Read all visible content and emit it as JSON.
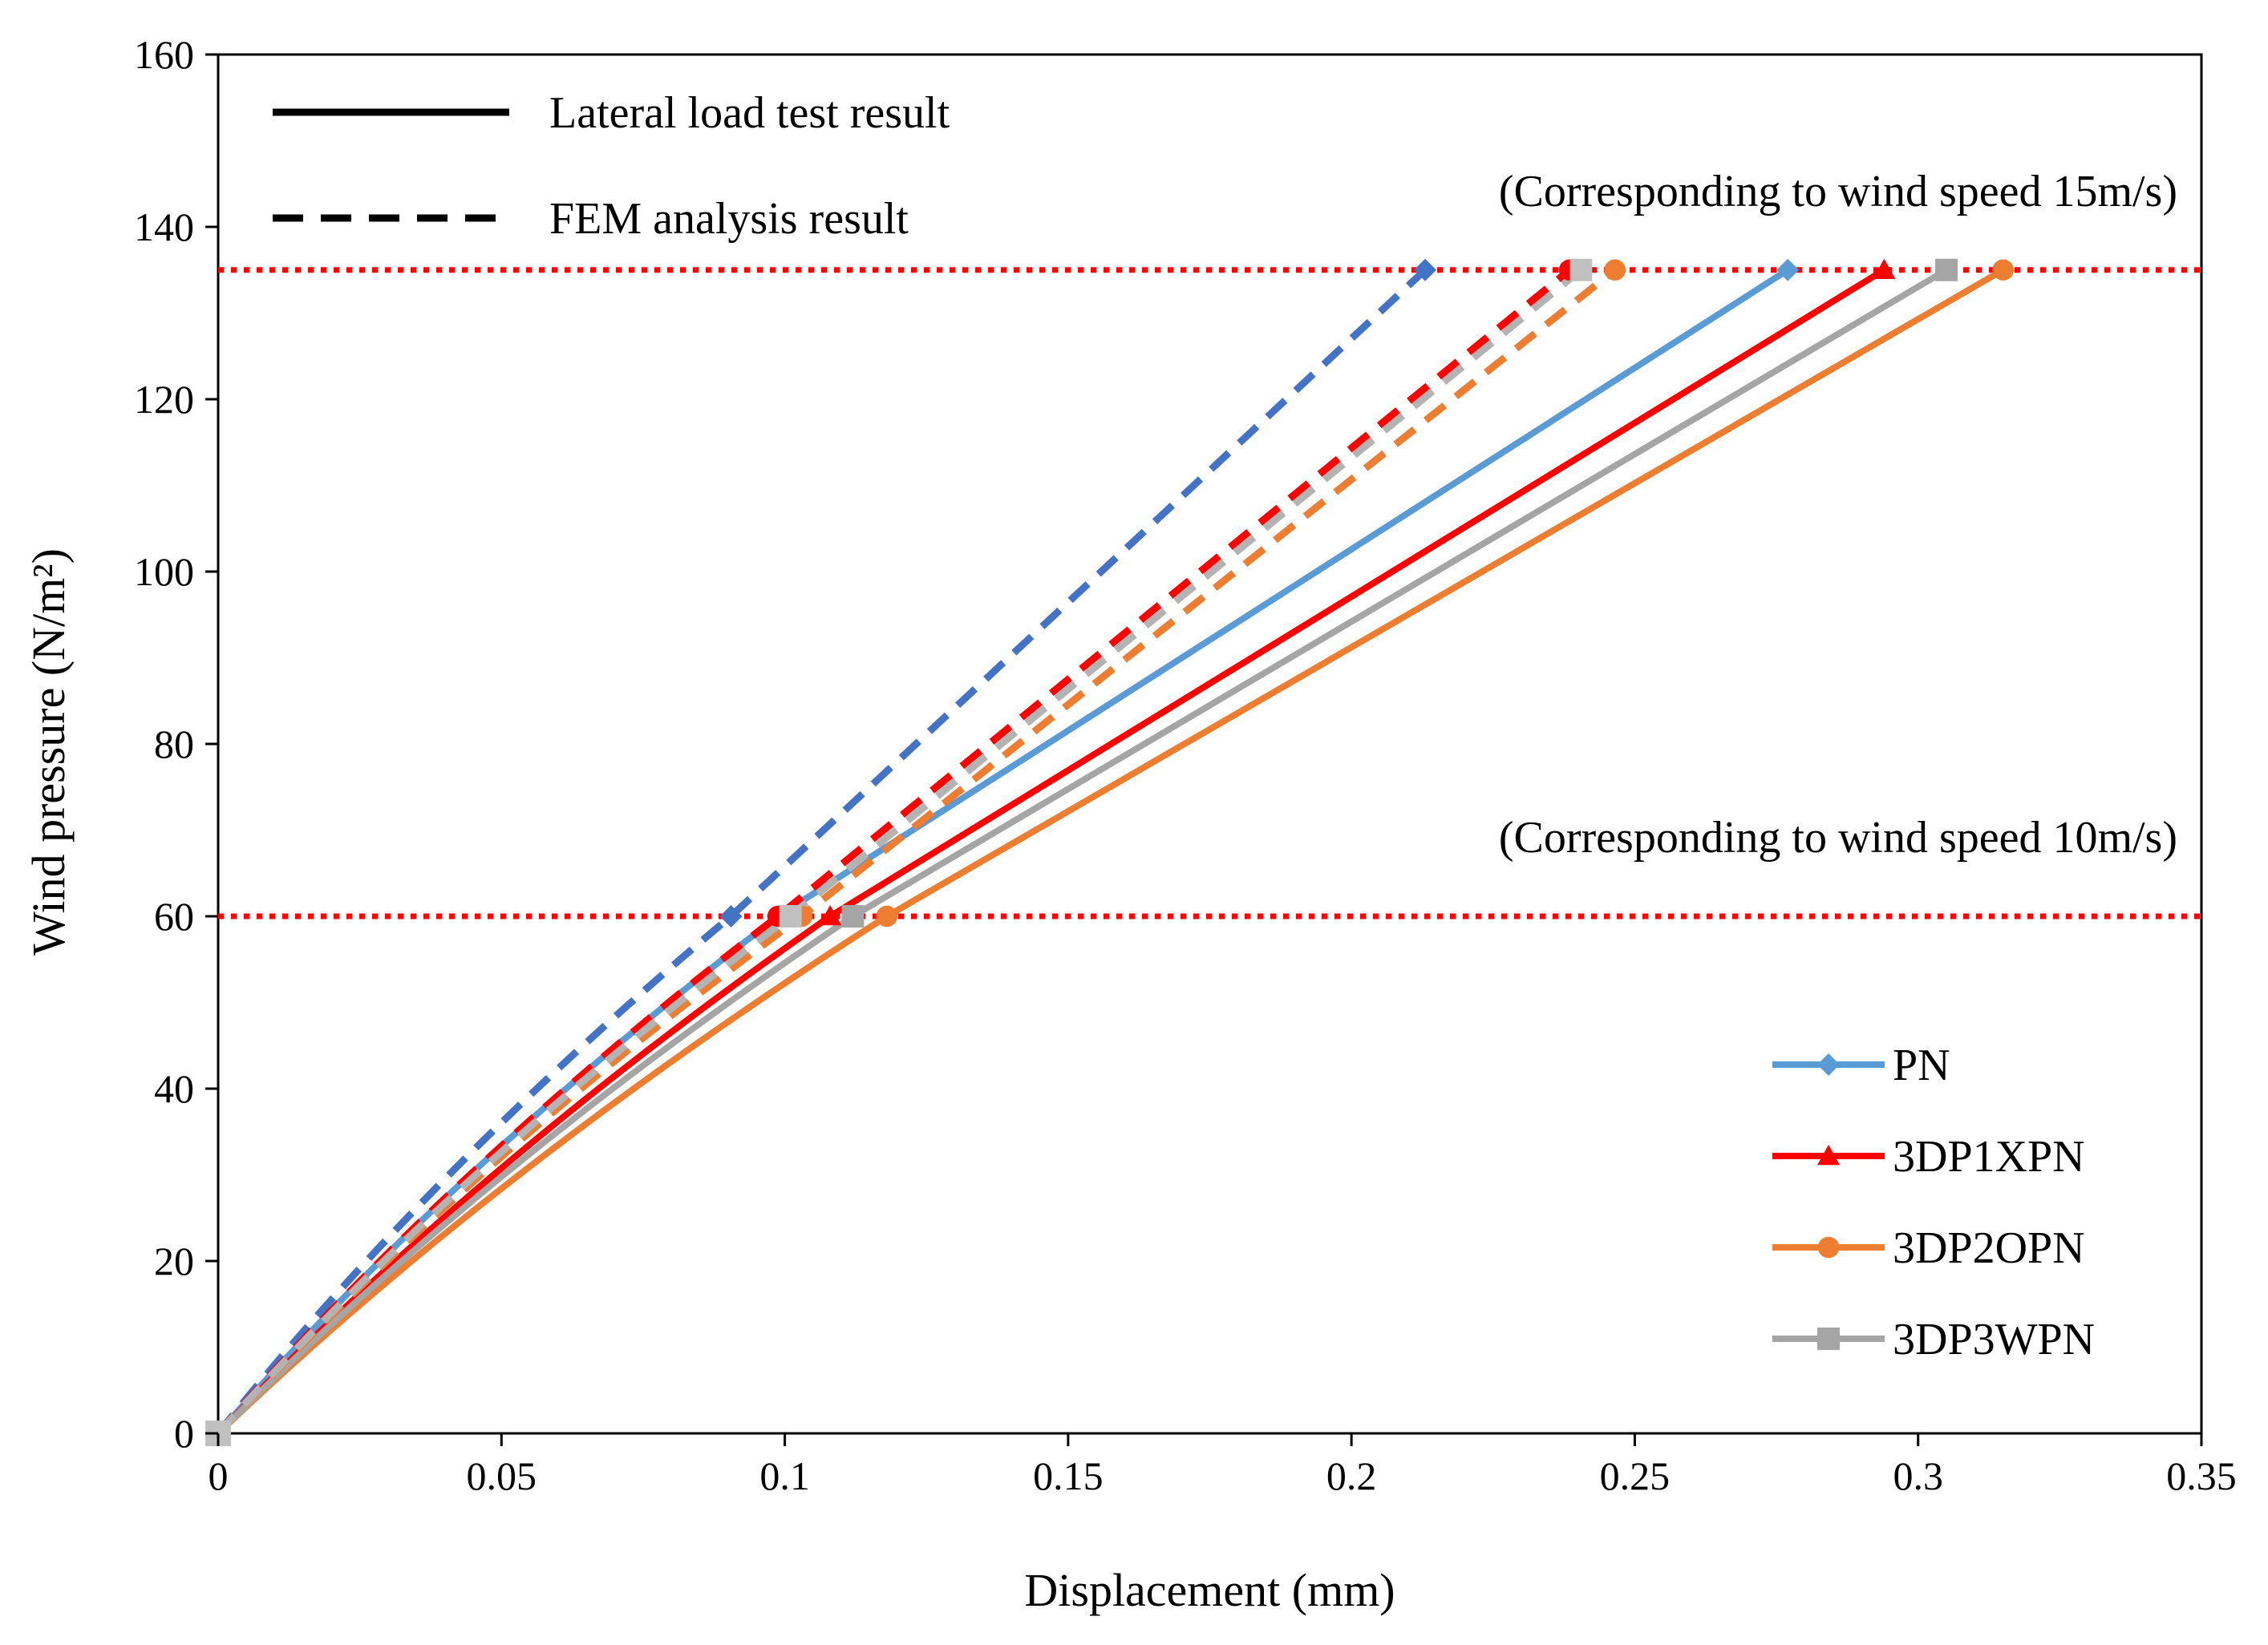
{
  "chart_data": {
    "type": "line",
    "title": "",
    "xlabel": "Displacement (mm)",
    "ylabel": "Wind pressure (N/m²)",
    "xlim": [
      0,
      0.35
    ],
    "ylim": [
      0,
      160
    ],
    "xticks": [
      0,
      0.05,
      0.1,
      0.15,
      0.2,
      0.25,
      0.3,
      0.35
    ],
    "xtick_labels": [
      "0",
      "0.05",
      "0.1",
      "0.15",
      "0.2",
      "0.25",
      "0.3",
      "0.35"
    ],
    "yticks": [
      0,
      20,
      40,
      60,
      80,
      100,
      120,
      140,
      160
    ],
    "ytick_labels": [
      "0",
      "20",
      "40",
      "60",
      "80",
      "100",
      "120",
      "140",
      "160"
    ],
    "grid": false,
    "reference_lines": [
      {
        "y": 135,
        "color": "#ff0000",
        "style": "dotted",
        "label": "(Corresponding to wind speed 15m/s)"
      },
      {
        "y": 60,
        "color": "#ff0000",
        "style": "dotted",
        "label": "(Corresponding to wind speed 10m/s)"
      }
    ],
    "line_style_legend": [
      {
        "style": "solid",
        "label": "Lateral load test result"
      },
      {
        "style": "dashed",
        "label": "FEM analysis result"
      }
    ],
    "series": [
      {
        "name": "PN",
        "kind": "test",
        "color": "#5b9bd5",
        "marker": "diamond",
        "x": [
          0,
          0.0988,
          0.277
        ],
        "y": [
          0,
          60,
          135
        ],
        "show_in_legend": true
      },
      {
        "name": "3DP1XPN",
        "kind": "test",
        "color": "#ff0000",
        "marker": "triangle",
        "x": [
          0,
          0.108,
          0.294
        ],
        "y": [
          0,
          60,
          135
        ],
        "show_in_legend": true
      },
      {
        "name": "3DP2OPN",
        "kind": "test",
        "color": "#ed7d31",
        "marker": "circle",
        "x": [
          0,
          0.118,
          0.315
        ],
        "y": [
          0,
          60,
          135
        ],
        "show_in_legend": true
      },
      {
        "name": "3DP3WPN",
        "kind": "test",
        "color": "#a5a5a5",
        "marker": "square",
        "x": [
          0,
          0.112,
          0.305
        ],
        "y": [
          0,
          60,
          135
        ],
        "show_in_legend": true
      },
      {
        "name": "PN FEM",
        "kind": "fem",
        "color": "#4472c4",
        "marker": "diamond",
        "x": [
          0,
          0.0905,
          0.213
        ],
        "y": [
          0,
          60,
          135
        ],
        "show_in_legend": false
      },
      {
        "name": "3DP1XPN FEM",
        "kind": "fem",
        "color": "#ff0000",
        "marker": "circle",
        "x": [
          0,
          0.0988,
          0.2385
        ],
        "y": [
          0,
          60,
          135
        ],
        "show_in_legend": false
      },
      {
        "name": "3DP2OPN FEM",
        "kind": "fem",
        "color": "#ed7d31",
        "marker": "circle",
        "x": [
          0,
          0.103,
          0.2465
        ],
        "y": [
          0,
          60,
          135
        ],
        "show_in_legend": false
      },
      {
        "name": "3DP3WPN FEM",
        "kind": "fem",
        "color": "#b3b3b3",
        "marker": "square",
        "x": [
          0,
          0.101,
          0.2405
        ],
        "y": [
          0,
          60,
          135
        ],
        "show_in_legend": false
      }
    ]
  }
}
